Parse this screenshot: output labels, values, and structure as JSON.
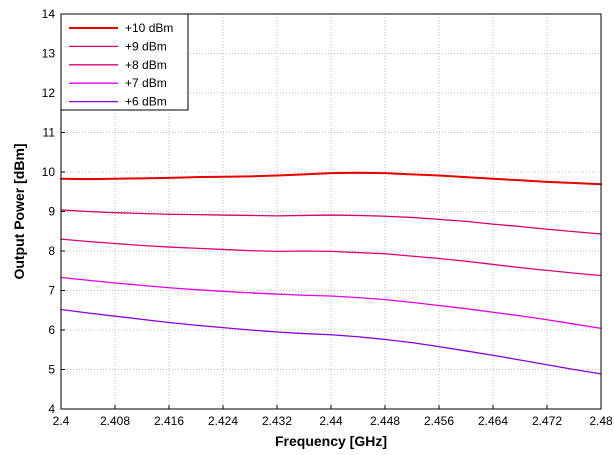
{
  "chart_data": {
    "type": "line",
    "title": "",
    "xlabel": "Frequency [GHz]",
    "ylabel": "Output Power [dBm]",
    "xlim": [
      2.4,
      2.48
    ],
    "ylim": [
      4,
      14
    ],
    "x_ticks": [
      2.4,
      2.408,
      2.416,
      2.424,
      2.432,
      2.44,
      2.448,
      2.456,
      2.464,
      2.472,
      2.48
    ],
    "x_tick_labels": [
      "2.4",
      "2.408",
      "2.416",
      "2.424",
      "2.432",
      "2.44",
      "2.448",
      "2.456",
      "2.464",
      "2.472",
      "2.48"
    ],
    "y_ticks": [
      4,
      5,
      6,
      7,
      8,
      9,
      10,
      11,
      12,
      13,
      14
    ],
    "y_tick_labels": [
      "4",
      "5",
      "6",
      "7",
      "8",
      "9",
      "10",
      "11",
      "12",
      "13",
      "14"
    ],
    "grid": true,
    "legend_position": "top-left",
    "x": [
      2.4,
      2.404,
      2.408,
      2.412,
      2.416,
      2.42,
      2.424,
      2.428,
      2.432,
      2.436,
      2.44,
      2.444,
      2.448,
      2.452,
      2.456,
      2.46,
      2.464,
      2.468,
      2.472,
      2.476,
      2.48
    ],
    "series": [
      {
        "name": "+10 dBm",
        "color": "#e60000",
        "values": [
          9.83,
          9.82,
          9.83,
          9.84,
          9.85,
          9.87,
          9.88,
          9.89,
          9.91,
          9.94,
          9.97,
          9.98,
          9.97,
          9.94,
          9.91,
          9.87,
          9.83,
          9.79,
          9.75,
          9.72,
          9.69
        ]
      },
      {
        "name": "+9 dBm",
        "color": "#d8006a",
        "values": [
          9.04,
          9.0,
          8.97,
          8.95,
          8.93,
          8.92,
          8.91,
          8.9,
          8.89,
          8.9,
          8.91,
          8.9,
          8.88,
          8.85,
          8.8,
          8.75,
          8.68,
          8.62,
          8.55,
          8.49,
          8.43
        ]
      },
      {
        "name": "+8 dBm",
        "color": "#e0007a",
        "values": [
          8.3,
          8.24,
          8.19,
          8.14,
          8.1,
          8.07,
          8.04,
          8.01,
          7.99,
          8.0,
          7.99,
          7.96,
          7.93,
          7.87,
          7.81,
          7.74,
          7.66,
          7.58,
          7.51,
          7.44,
          7.38
        ]
      },
      {
        "name": "+7 dBm",
        "color": "#e600e6",
        "values": [
          7.33,
          7.26,
          7.19,
          7.13,
          7.07,
          7.02,
          6.98,
          6.94,
          6.91,
          6.88,
          6.86,
          6.82,
          6.77,
          6.7,
          6.62,
          6.54,
          6.45,
          6.36,
          6.26,
          6.15,
          6.04
        ]
      },
      {
        "name": "+6 dBm",
        "color": "#8a00e0",
        "values": [
          6.52,
          6.43,
          6.35,
          6.27,
          6.19,
          6.12,
          6.06,
          6.0,
          5.95,
          5.91,
          5.88,
          5.83,
          5.76,
          5.68,
          5.58,
          5.47,
          5.36,
          5.24,
          5.12,
          5.0,
          4.89
        ]
      }
    ]
  }
}
